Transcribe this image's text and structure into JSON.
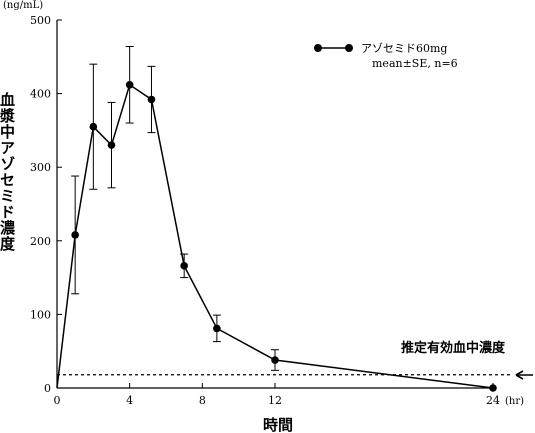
{
  "chart_data": {
    "type": "line",
    "y_unit": "(ng/mL)",
    "x_unit": "(hr)",
    "xlabel": "時間",
    "ylabel": "血漿中アゾセミド濃度",
    "xlim": [
      0,
      24
    ],
    "ylim": [
      0,
      500
    ],
    "x_ticks": [
      0,
      4,
      8,
      12,
      24
    ],
    "y_ticks": [
      0,
      100,
      200,
      300,
      400,
      500
    ],
    "legend_position": "top-right",
    "series": [
      {
        "name": "アゾセミド60mg",
        "x": [
          0,
          1,
          2,
          3,
          4,
          5.2,
          7,
          8.8,
          12,
          24
        ],
        "y": [
          0,
          208,
          355,
          330,
          412,
          392,
          166,
          81,
          38,
          0
        ],
        "err": [
          0,
          80,
          85,
          58,
          52,
          45,
          16,
          18,
          14,
          0
        ]
      }
    ],
    "legend_note": "mean±SE, n=6",
    "threshold": {
      "label": "推定有効血中濃度",
      "value": 18
    }
  }
}
